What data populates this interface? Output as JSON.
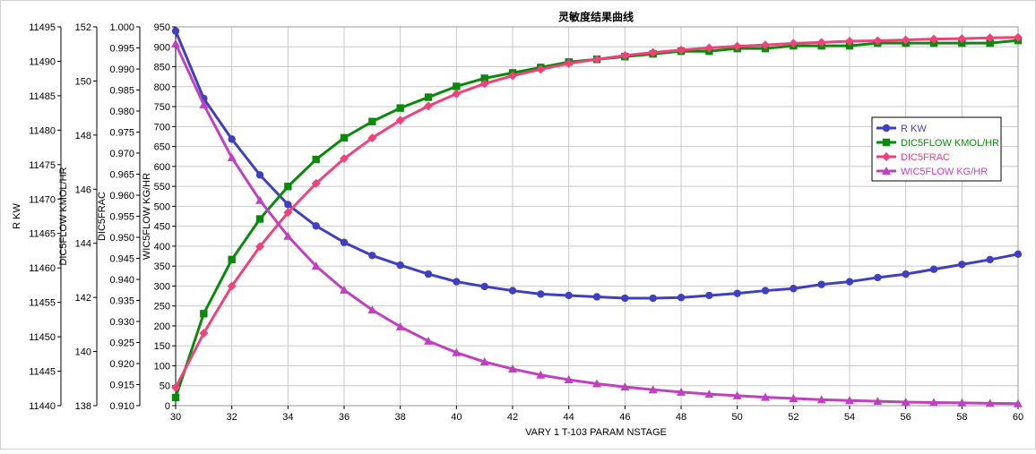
{
  "chart_data": {
    "type": "line",
    "title": "灵敏度结果曲线",
    "xlabel": "VARY   1 T-103 PARAM NSTAGE",
    "xlim": [
      30,
      60
    ],
    "x_ticks": [
      30,
      32,
      34,
      36,
      38,
      40,
      42,
      44,
      46,
      48,
      50,
      52,
      54,
      56,
      58,
      60
    ],
    "x": [
      30,
      31,
      32,
      33,
      34,
      35,
      36,
      37,
      38,
      39,
      40,
      41,
      42,
      43,
      44,
      45,
      46,
      47,
      48,
      49,
      50,
      51,
      52,
      53,
      54,
      55,
      56,
      57,
      58,
      59,
      60
    ],
    "grid": true,
    "legend_position": "right",
    "y_axes": [
      {
        "id": "rkw",
        "label": "R KW",
        "ylim": [
          11440,
          11495
        ],
        "ticks": [
          11440,
          11445,
          11450,
          11455,
          11460,
          11465,
          11470,
          11475,
          11480,
          11485,
          11490,
          11495
        ]
      },
      {
        "id": "dic5flow",
        "label": "DIC5FLOW KMOL/HR",
        "ylim": [
          138,
          152
        ],
        "ticks": [
          138,
          140,
          142,
          144,
          146,
          148,
          150,
          152
        ]
      },
      {
        "id": "dic5frac",
        "label": "DIC5FRAC",
        "ylim": [
          0.91,
          1.0
        ],
        "ticks": [
          "0.910",
          "0.915",
          "0.920",
          "0.925",
          "0.930",
          "0.935",
          "0.940",
          "0.945",
          "0.950",
          "0.955",
          "0.960",
          "0.965",
          "0.970",
          "0.975",
          "0.980",
          "0.985",
          "0.990",
          "0.995",
          "1.000"
        ]
      },
      {
        "id": "wic5flow",
        "label": "WIC5FLOW KG/HR",
        "ylim": [
          0,
          950
        ],
        "ticks": [
          0,
          50,
          100,
          150,
          200,
          250,
          300,
          350,
          400,
          450,
          500,
          550,
          600,
          650,
          700,
          750,
          800,
          850,
          900,
          950
        ]
      }
    ],
    "series": [
      {
        "name": "R KW",
        "axis": "rkw",
        "color": "#3f3fbf",
        "marker": "circle",
        "values": [
          11494.4,
          11484.6,
          11478.7,
          11473.5,
          11469.2,
          11466.1,
          11463.7,
          11461.8,
          11460.4,
          11459.1,
          11458.0,
          11457.3,
          11456.7,
          11456.2,
          11456.0,
          11455.8,
          11455.6,
          11455.6,
          11455.7,
          11456.0,
          11456.3,
          11456.7,
          11457.0,
          11457.6,
          11458.0,
          11458.6,
          11459.1,
          11459.8,
          11460.5,
          11461.2,
          11462.0
        ]
      },
      {
        "name": "DIC5FLOW KMOL/HR",
        "axis": "dic5flow",
        "color": "#0a8a0a",
        "marker": "square",
        "values": [
          138.3,
          141.4,
          143.4,
          144.9,
          146.1,
          147.1,
          147.9,
          148.5,
          149.0,
          149.4,
          149.8,
          150.1,
          150.3,
          150.5,
          150.7,
          150.8,
          150.9,
          151.0,
          151.1,
          151.1,
          151.2,
          151.2,
          151.3,
          151.3,
          151.3,
          151.4,
          151.4,
          151.4,
          151.4,
          151.4,
          151.5
        ]
      },
      {
        "name": "DIC5FRAC",
        "axis": "dic5frac",
        "color": "#f0427a",
        "marker": "diamond",
        "values": [
          0.9143,
          0.9272,
          0.9384,
          0.9478,
          0.9559,
          0.9628,
          0.9687,
          0.9736,
          0.9778,
          0.9812,
          0.9841,
          0.9865,
          0.9884,
          0.9899,
          0.9913,
          0.9923,
          0.9932,
          0.9939,
          0.9945,
          0.995,
          0.9954,
          0.9957,
          0.9961,
          0.9963,
          0.9966,
          0.9967,
          0.9969,
          0.9971,
          0.9972,
          0.9974,
          0.9975
        ]
      },
      {
        "name": "WIC5FLOW KG/HR",
        "axis": "wic5flow",
        "color": "#c040c0",
        "marker": "triangle",
        "values": [
          908,
          755,
          622,
          515,
          425,
          350,
          290,
          240,
          198,
          162,
          133,
          110,
          92,
          77,
          65,
          55,
          47,
          40,
          34,
          29,
          25,
          21,
          18,
          15,
          13,
          11,
          9,
          8,
          7,
          6,
          5
        ]
      }
    ]
  }
}
